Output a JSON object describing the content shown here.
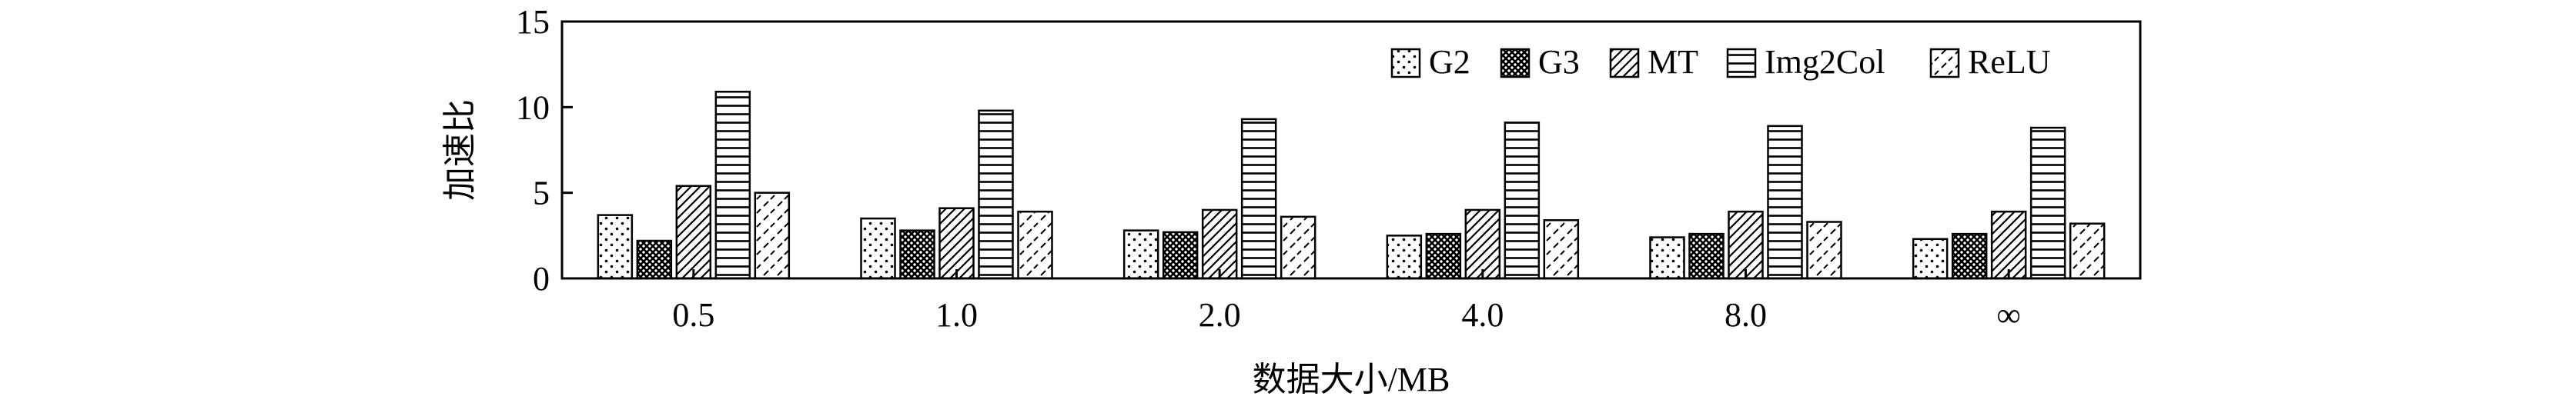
{
  "chart_data": {
    "type": "bar",
    "title": "",
    "xlabel": "数据大小/MB",
    "ylabel": "加速比",
    "ylim": [
      0,
      15
    ],
    "yticks": [
      0,
      5,
      10,
      15
    ],
    "grid": false,
    "legend_position": "top-right",
    "categories": [
      "0.5",
      "1.0",
      "2.0",
      "4.0",
      "8.0",
      "∞"
    ],
    "series": [
      {
        "name": "G2",
        "pattern": "dots",
        "values": [
          3.7,
          3.5,
          2.8,
          2.5,
          2.4,
          2.3
        ]
      },
      {
        "name": "G3",
        "pattern": "crosshatch",
        "values": [
          2.2,
          2.8,
          2.7,
          2.6,
          2.6,
          2.6
        ]
      },
      {
        "name": "MT",
        "pattern": "diagonal",
        "values": [
          5.4,
          4.1,
          4.0,
          4.0,
          3.9,
          3.9
        ]
      },
      {
        "name": "Img2Col",
        "pattern": "horizontal",
        "values": [
          10.9,
          9.8,
          9.3,
          9.1,
          8.9,
          8.8
        ]
      },
      {
        "name": "ReLU",
        "pattern": "dashed-diagonal",
        "values": [
          5.0,
          3.9,
          3.6,
          3.4,
          3.3,
          3.2
        ]
      }
    ]
  }
}
